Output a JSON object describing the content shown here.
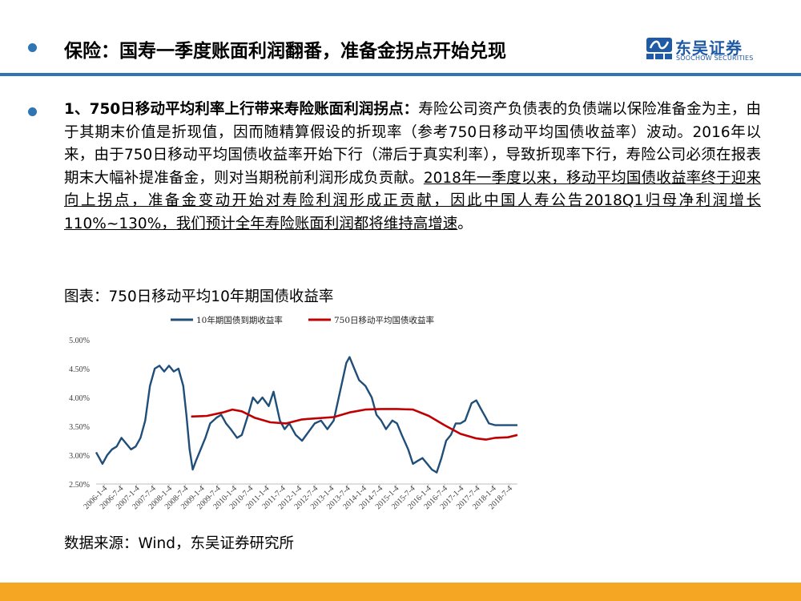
{
  "header": {
    "title": "保险：国寿一季度账面利润翻番，准备金拐点开始兑现",
    "logo_cn": "东吴证券",
    "logo_en": "SOOCHOW SECURITIES",
    "accent_color": "#2f74b5",
    "footer_color": "#f5a623"
  },
  "body": {
    "lead": "1、750日移动平均利率上行带来寿险账面利润拐点：",
    "text": "寿险公司资产负债表的负债端以保险准备金为主，由于其期末价值是折现值，因而随精算假设的折现率（参考750日移动平均国债收益率）波动。2016年以来，由于750日移动平均国债收益率开始下行（滞后于真实利率），导致折现率下行，寿险公司必须在报表期末大幅补提准备金，则对当期税前利润形成负贡献。",
    "underlined": "2018年一季度以来，移动平均国债收益率终于迎来向上拐点，准备金变动开始对寿险利润形成正贡献，因此中国人寿公告2018Q1归母净利润增长110%~130%，我们预计全年寿险账面利润都将维持高增速",
    "end": "。"
  },
  "figure": {
    "caption": "图表：750日移动平均10年期国债收益率",
    "source": "数据来源：Wind，东吴证券研究所"
  },
  "chart_data": {
    "type": "line",
    "ylim": [
      2.5,
      5.0
    ],
    "yticks": [
      "2.50%",
      "3.00%",
      "3.50%",
      "4.00%",
      "4.50%",
      "5.00%"
    ],
    "xticks": [
      "2006-1-4",
      "2006-7-4",
      "2007-1-4",
      "2007-7-4",
      "2008-1-4",
      "2008-7-4",
      "2009-1-4",
      "2009-7-4",
      "2010-1-4",
      "2010-7-4",
      "2011-1-4",
      "2011-7-4",
      "2012-1-4",
      "2012-7-4",
      "2013-1-4",
      "2013-7-4",
      "2014-1-4",
      "2014-7-4",
      "2015-1-4",
      "2015-7-4",
      "2016-1-4",
      "2016-7-4",
      "2017-1-4",
      "2017-7-4",
      "2018-1-4",
      "2018-7-4"
    ],
    "x_range": [
      2006.0,
      2019.3
    ],
    "legend_position": "top",
    "grid": false,
    "series": [
      {
        "name": "10年期国债到期收益率",
        "color": "#1f4e79",
        "points": [
          [
            2006.0,
            3.05
          ],
          [
            2006.1,
            2.95
          ],
          [
            2006.2,
            2.85
          ],
          [
            2006.35,
            3.0
          ],
          [
            2006.5,
            3.1
          ],
          [
            2006.65,
            3.15
          ],
          [
            2006.8,
            3.3
          ],
          [
            2006.95,
            3.2
          ],
          [
            2007.1,
            3.1
          ],
          [
            2007.25,
            3.15
          ],
          [
            2007.4,
            3.3
          ],
          [
            2007.55,
            3.6
          ],
          [
            2007.7,
            4.2
          ],
          [
            2007.85,
            4.5
          ],
          [
            2008.0,
            4.55
          ],
          [
            2008.15,
            4.45
          ],
          [
            2008.3,
            4.55
          ],
          [
            2008.45,
            4.45
          ],
          [
            2008.6,
            4.5
          ],
          [
            2008.75,
            4.2
          ],
          [
            2008.85,
            3.7
          ],
          [
            2008.95,
            3.1
          ],
          [
            2009.05,
            2.75
          ],
          [
            2009.15,
            2.9
          ],
          [
            2009.3,
            3.1
          ],
          [
            2009.45,
            3.3
          ],
          [
            2009.6,
            3.55
          ],
          [
            2009.8,
            3.65
          ],
          [
            2009.95,
            3.7
          ],
          [
            2010.1,
            3.55
          ],
          [
            2010.25,
            3.45
          ],
          [
            2010.45,
            3.3
          ],
          [
            2010.6,
            3.35
          ],
          [
            2010.8,
            3.7
          ],
          [
            2010.95,
            4.0
          ],
          [
            2011.1,
            3.9
          ],
          [
            2011.25,
            4.0
          ],
          [
            2011.45,
            3.85
          ],
          [
            2011.6,
            4.1
          ],
          [
            2011.8,
            3.6
          ],
          [
            2011.95,
            3.45
          ],
          [
            2012.1,
            3.55
          ],
          [
            2012.3,
            3.35
          ],
          [
            2012.5,
            3.25
          ],
          [
            2012.7,
            3.4
          ],
          [
            2012.9,
            3.55
          ],
          [
            2013.1,
            3.6
          ],
          [
            2013.3,
            3.45
          ],
          [
            2013.5,
            3.6
          ],
          [
            2013.7,
            4.1
          ],
          [
            2013.9,
            4.6
          ],
          [
            2014.0,
            4.7
          ],
          [
            2014.15,
            4.5
          ],
          [
            2014.3,
            4.3
          ],
          [
            2014.5,
            4.2
          ],
          [
            2014.7,
            4.0
          ],
          [
            2014.85,
            3.7
          ],
          [
            2015.0,
            3.6
          ],
          [
            2015.15,
            3.45
          ],
          [
            2015.35,
            3.6
          ],
          [
            2015.5,
            3.55
          ],
          [
            2015.65,
            3.35
          ],
          [
            2015.85,
            3.1
          ],
          [
            2016.0,
            2.85
          ],
          [
            2016.15,
            2.9
          ],
          [
            2016.3,
            2.95
          ],
          [
            2016.45,
            2.85
          ],
          [
            2016.6,
            2.75
          ],
          [
            2016.75,
            2.7
          ],
          [
            2016.9,
            2.95
          ],
          [
            2017.05,
            3.25
          ],
          [
            2017.2,
            3.35
          ],
          [
            2017.35,
            3.55
          ],
          [
            2017.5,
            3.55
          ],
          [
            2017.65,
            3.6
          ],
          [
            2017.85,
            3.9
          ],
          [
            2018.0,
            3.95
          ],
          [
            2018.15,
            3.8
          ],
          [
            2018.3,
            3.65
          ],
          [
            2018.4,
            3.55
          ],
          [
            2018.6,
            3.52
          ],
          [
            2018.9,
            3.52
          ],
          [
            2019.3,
            3.52
          ]
        ]
      },
      {
        "name": "750日移动平均国债收益率",
        "color": "#c00000",
        "points": [
          [
            2009.0,
            3.67
          ],
          [
            2009.5,
            3.68
          ],
          [
            2010.0,
            3.74
          ],
          [
            2010.3,
            3.79
          ],
          [
            2010.6,
            3.76
          ],
          [
            2011.0,
            3.65
          ],
          [
            2011.5,
            3.57
          ],
          [
            2012.0,
            3.55
          ],
          [
            2012.5,
            3.62
          ],
          [
            2013.0,
            3.64
          ],
          [
            2013.5,
            3.66
          ],
          [
            2014.0,
            3.74
          ],
          [
            2014.5,
            3.79
          ],
          [
            2015.0,
            3.8
          ],
          [
            2015.5,
            3.8
          ],
          [
            2016.0,
            3.79
          ],
          [
            2016.5,
            3.68
          ],
          [
            2017.0,
            3.52
          ],
          [
            2017.5,
            3.37
          ],
          [
            2018.0,
            3.29
          ],
          [
            2018.3,
            3.27
          ],
          [
            2018.6,
            3.3
          ],
          [
            2019.0,
            3.31
          ],
          [
            2019.3,
            3.35
          ]
        ]
      }
    ]
  }
}
